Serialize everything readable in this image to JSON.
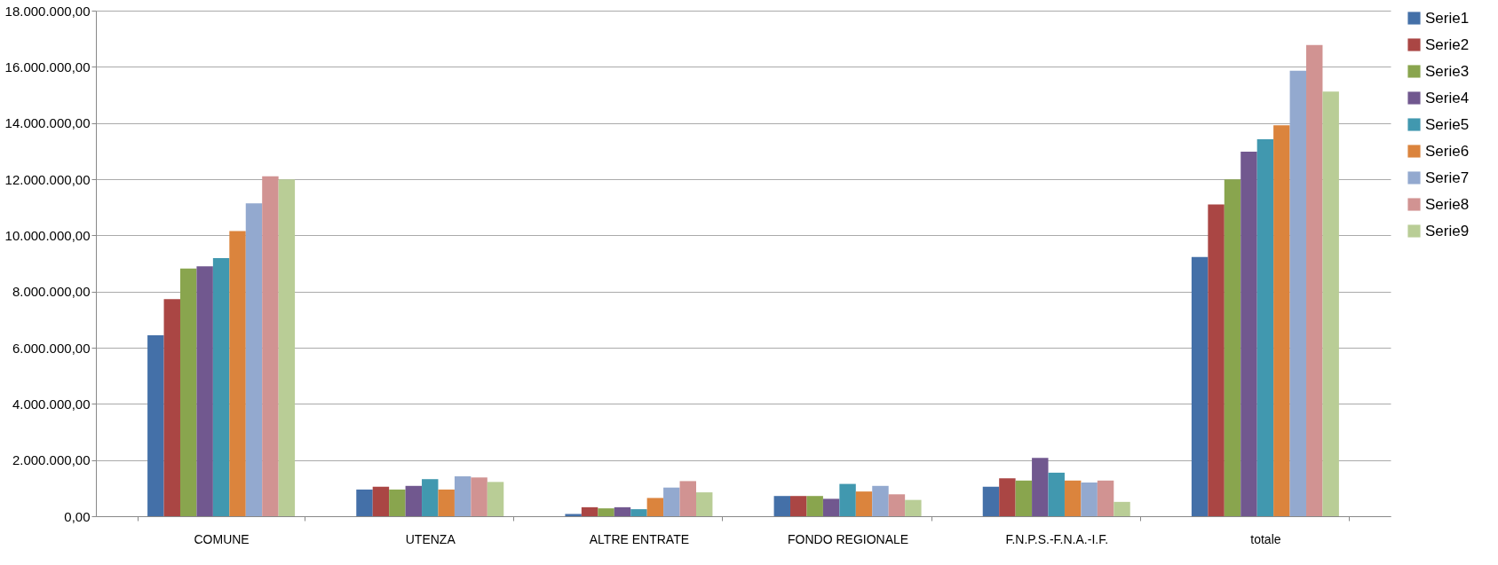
{
  "chart_data": {
    "type": "bar",
    "categories": [
      "COMUNE",
      "UTENZA",
      "ALTRE ENTRATE",
      "FONDO REGIONALE",
      "F.N.P.S.-F.N.A.-I.F.",
      "totale"
    ],
    "series": [
      {
        "name": "Serie1",
        "color": "#4470a8",
        "values": [
          6440000,
          950000,
          80000,
          720000,
          1050000,
          9230000
        ]
      },
      {
        "name": "Serie2",
        "color": "#aa4644",
        "values": [
          7730000,
          1050000,
          320000,
          720000,
          1350000,
          11100000
        ]
      },
      {
        "name": "Serie3",
        "color": "#89a54e",
        "values": [
          8820000,
          950000,
          280000,
          720000,
          1270000,
          11990000
        ]
      },
      {
        "name": "Serie4",
        "color": "#71588f",
        "values": [
          8900000,
          1080000,
          320000,
          620000,
          2080000,
          12980000
        ]
      },
      {
        "name": "Serie5",
        "color": "#4198af",
        "values": [
          9190000,
          1320000,
          250000,
          1150000,
          1550000,
          13420000
        ]
      },
      {
        "name": "Serie6",
        "color": "#db843d",
        "values": [
          10150000,
          950000,
          650000,
          880000,
          1270000,
          13920000
        ]
      },
      {
        "name": "Serie7",
        "color": "#93a9cf",
        "values": [
          11140000,
          1420000,
          1020000,
          1080000,
          1200000,
          15860000
        ]
      },
      {
        "name": "Serie8",
        "color": "#d19392",
        "values": [
          12100000,
          1380000,
          1250000,
          780000,
          1270000,
          16780000
        ]
      },
      {
        "name": "Serie9",
        "color": "#b9cd96",
        "values": [
          11990000,
          1220000,
          850000,
          580000,
          510000,
          15120000
        ]
      }
    ],
    "ylim": [
      0,
      18000000
    ],
    "yticks": [
      {
        "value": 0,
        "label": "0,00"
      },
      {
        "value": 2000000,
        "label": "2.000.000,00"
      },
      {
        "value": 4000000,
        "label": "4.000.000,00"
      },
      {
        "value": 6000000,
        "label": "6.000.000,00"
      },
      {
        "value": 8000000,
        "label": "8.000.000,00"
      },
      {
        "value": 10000000,
        "label": "10.000.000,00"
      },
      {
        "value": 12000000,
        "label": "12.000.000,00"
      },
      {
        "value": 14000000,
        "label": "14.000.000,00"
      },
      {
        "value": 16000000,
        "label": "16.000.000,00"
      },
      {
        "value": 18000000,
        "label": "18.000.000,00"
      }
    ],
    "grid": "y",
    "legend": "right"
  }
}
